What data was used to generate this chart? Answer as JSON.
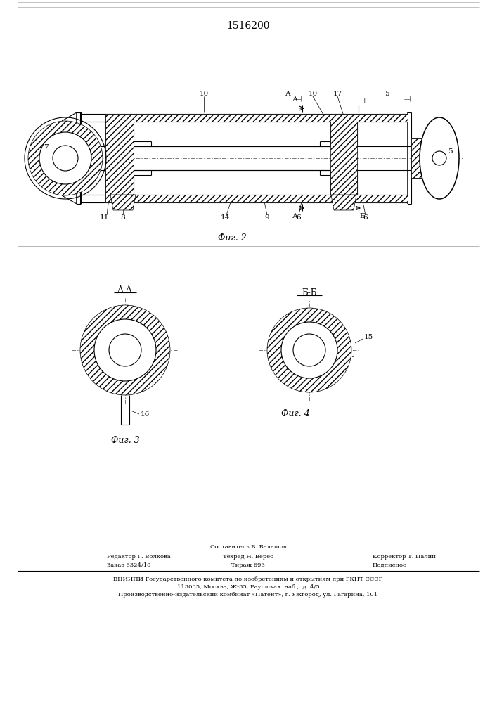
{
  "title": "1516200",
  "title_fontsize": 10,
  "background_color": "#ffffff",
  "line_color": "#000000",
  "fig2_label": "Фиг. 2",
  "fig3_label": "Фиг. 3",
  "fig4_label": "Фиг. 4",
  "section_aa_label": "А-А",
  "section_bb_label": "Б-Б",
  "footer_line1": "Составитель В. Балашов",
  "footer_line2_left": "Редактор Г. Волкова",
  "footer_line2_mid": "Техред Н. Верес",
  "footer_line2_right": "Корректор Т. Палий",
  "footer_line3_left": "Заказ 6324/10",
  "footer_line3_mid": "Тираж 693",
  "footer_line3_right": "Подписное",
  "footer_line4": "ВНИИПИ Государственного комитета по изобретениям и открытиям при ГКНТ СССР",
  "footer_line5": "113035, Москва, Ж-35, Раушская  наб.,  д. 4/5",
  "footer_line6": "Производственно-издательский комбинат «Патент», г. Ужгород, ул. Гагарина, 101",
  "font_size_footer": 6.0,
  "font_size_label": 7.5,
  "font_size_fig": 9
}
